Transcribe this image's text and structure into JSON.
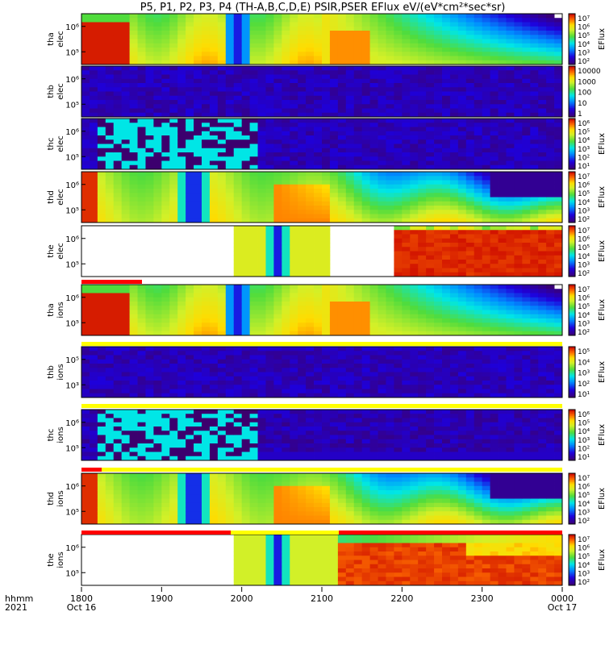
{
  "title": "P5, P1, P2, P3, P4 (TH-A,B,C,D,E) PSIR,PSER EFlux eV/(eV*cm²*sec*sr)",
  "time_axis": {
    "row_label_1": "hhmm",
    "row_label_2": "2021",
    "ticks": [
      "1800",
      "1900",
      "2000",
      "2100",
      "2200",
      "2300",
      "0000"
    ],
    "date_labels": [
      {
        "tick": "1800",
        "date": "Oct 16"
      },
      {
        "tick": "0000",
        "date": "Oct 17"
      }
    ]
  },
  "colors": {
    "frame": "#000000",
    "flag_red": "#ff0000",
    "flag_yellow": "#ffff00"
  },
  "chart_data": {
    "type": "heatmap",
    "x_range_hhmm": [
      "1800",
      "0000"
    ],
    "colorbar_unit": "EFlux",
    "panels": [
      {
        "name": "tha_elec",
        "label1": "tha",
        "label2": "elec",
        "yticks": [
          "10⁶",
          "10⁵"
        ],
        "colorbar_ticks": [
          "10⁷",
          "10⁶",
          "10⁵",
          "10⁴",
          "10³",
          "10²"
        ],
        "colorbar_label": "EFlux",
        "pattern": "magnetosphere"
      },
      {
        "name": "thb_elec",
        "label1": "thb",
        "label2": "elec",
        "yticks": [
          "10⁶",
          "10⁵"
        ],
        "colorbar_ticks": [
          "10000",
          "1000",
          "100",
          "10",
          "1"
        ],
        "colorbar_label": "",
        "pattern": "noise"
      },
      {
        "name": "thc_elec",
        "label1": "thc",
        "label2": "elec",
        "yticks": [
          "10⁶",
          "10⁵"
        ],
        "colorbar_ticks": [
          "10⁶",
          "10⁵",
          "10⁴",
          "10³",
          "10²",
          "10¹"
        ],
        "colorbar_label": "EFlux",
        "pattern": "cyan_noise"
      },
      {
        "name": "thd_elec",
        "label1": "thd",
        "label2": "elec",
        "yticks": [
          "10⁶",
          "10⁵"
        ],
        "colorbar_ticks": [
          "10⁷",
          "10⁶",
          "10⁵",
          "10⁴",
          "10³",
          "10²"
        ],
        "colorbar_label": "EFlux",
        "pattern": "magnetosphere_d"
      },
      {
        "name": "the_elec",
        "label1": "the",
        "label2": "elec",
        "yticks": [
          "10⁶",
          "10⁵"
        ],
        "colorbar_ticks": [
          "10⁷",
          "10⁶",
          "10⁵",
          "10⁴",
          "10³",
          "10²"
        ],
        "colorbar_label": "EFlux",
        "pattern": "partial"
      },
      {
        "name": "tha_ions",
        "label1": "tha",
        "label2": "ions",
        "yticks": [
          "10⁶",
          "10⁵"
        ],
        "colorbar_ticks": [
          "10⁷",
          "10⁶",
          "10⁵",
          "10⁴",
          "10³",
          "10²"
        ],
        "colorbar_label": "EFlux",
        "pattern": "magnetosphere"
      },
      {
        "name": "thb_ions",
        "label1": "thb",
        "label2": "ions",
        "yticks": [
          "10⁵",
          "10³"
        ],
        "colorbar_ticks": [
          "10⁵",
          "10⁴",
          "10³",
          "10²",
          "10¹"
        ],
        "colorbar_label": "EFlux",
        "pattern": "noise"
      },
      {
        "name": "thc_ions",
        "label1": "thc",
        "label2": "ions",
        "yticks": [
          "10⁶",
          "10⁵"
        ],
        "colorbar_ticks": [
          "10⁶",
          "10⁵",
          "10⁴",
          "10³",
          "10²",
          "10¹"
        ],
        "colorbar_label": "EFlux",
        "pattern": "cyan_noise_i"
      },
      {
        "name": "thd_ions",
        "label1": "thd",
        "label2": "ions",
        "yticks": [
          "10⁶",
          "10⁵"
        ],
        "colorbar_ticks": [
          "10⁷",
          "10⁶",
          "10⁵",
          "10⁴",
          "10³",
          "10²"
        ],
        "colorbar_label": "EFlux",
        "pattern": "magnetosphere_d"
      },
      {
        "name": "the_ions",
        "label1": "the",
        "label2": "ions",
        "yticks": [
          "10⁶",
          "10⁵"
        ],
        "colorbar_ticks": [
          "10⁷",
          "10⁶",
          "10⁵",
          "10⁴",
          "10³",
          "10²"
        ],
        "colorbar_label": "EFlux",
        "pattern": "partial_i"
      }
    ]
  }
}
